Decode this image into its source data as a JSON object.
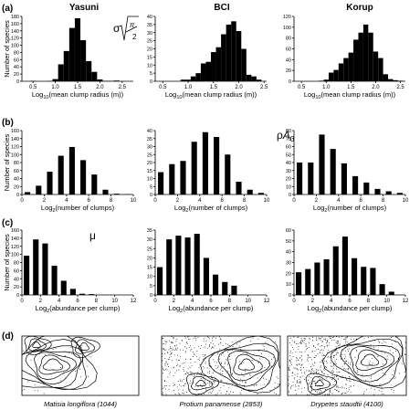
{
  "columns": [
    "Yasuni",
    "BCI",
    "Korup"
  ],
  "panel_labels": [
    "(a)",
    "(b)",
    "(c)",
    "(d)"
  ],
  "row_symbols": [
    "σ√(π/2)",
    "ρA₀",
    "μ"
  ],
  "chart_data": [
    {
      "row": "a",
      "site": "Yasuni",
      "type": "bar",
      "ylabel": "Number of species",
      "xlabel": "Log10(mean clump radius (m))",
      "xlim": [
        0.25,
        2.75
      ],
      "ylim": [
        0,
        180
      ],
      "bar_width": 0.125,
      "xticks": [
        0.5,
        1.0,
        1.5,
        2.0,
        2.5
      ],
      "xtick_labels": [
        "0.5",
        "1.0",
        "1.5",
        "2.0",
        "2.5"
      ],
      "yticks": [
        0,
        20,
        40,
        60,
        80,
        100,
        120,
        140,
        160,
        180
      ],
      "x": [
        0.375,
        0.5,
        0.625,
        0.75,
        0.875,
        1.0,
        1.125,
        1.25,
        1.375,
        1.5,
        1.625,
        1.75,
        1.875,
        2.0,
        2.125,
        2.25,
        2.375,
        2.5
      ],
      "values": [
        0,
        1,
        0,
        0,
        1,
        6,
        47,
        84,
        148,
        175,
        114,
        56,
        26,
        5,
        1,
        1,
        2,
        0
      ]
    },
    {
      "row": "a",
      "site": "BCI",
      "type": "bar",
      "ylabel": "",
      "xlabel": "Log10(mean clump radius (m))",
      "xlim": [
        0.35,
        2.55
      ],
      "ylim": [
        0,
        40
      ],
      "bar_width": 0.1,
      "xticks": [
        0.5,
        1.0,
        1.5,
        2.0,
        2.5
      ],
      "xtick_labels": [
        "0.5",
        "1.0",
        "1.5",
        "2.0",
        "2.5"
      ],
      "yticks": [
        0,
        5,
        10,
        15,
        20,
        25,
        30,
        35,
        40
      ],
      "x": [
        0.5,
        0.6,
        0.7,
        0.8,
        0.9,
        1.0,
        1.1,
        1.2,
        1.3,
        1.4,
        1.5,
        1.6,
        1.7,
        1.8,
        1.9,
        2.0,
        2.1,
        2.2,
        2.3,
        2.4
      ],
      "values": [
        0,
        0,
        0,
        0,
        1,
        1,
        3,
        5,
        11,
        12,
        18,
        21,
        29,
        35,
        37,
        31,
        20,
        4,
        3,
        1
      ]
    },
    {
      "row": "a",
      "site": "Korup",
      "type": "bar",
      "ylabel": "",
      "xlabel": "Log10(mean clump radius (m))",
      "xlim": [
        0.35,
        2.6
      ],
      "ylim": [
        0,
        120
      ],
      "bar_width": 0.1,
      "xticks": [
        0.5,
        1.0,
        1.5,
        2.0,
        2.5
      ],
      "xtick_labels": [
        "0.5",
        "1.0",
        "1.5",
        "2.0",
        "2.5"
      ],
      "yticks": [
        0,
        20,
        40,
        60,
        80,
        100,
        120
      ],
      "x": [
        0.9,
        1.0,
        1.1,
        1.2,
        1.3,
        1.4,
        1.5,
        1.6,
        1.7,
        1.8,
        1.9,
        2.0,
        2.1,
        2.2,
        2.3,
        2.4,
        2.5
      ],
      "values": [
        1,
        3,
        16,
        21,
        33,
        43,
        53,
        77,
        90,
        105,
        90,
        55,
        43,
        13,
        4,
        2,
        1
      ]
    },
    {
      "row": "b",
      "site": "Yasuni",
      "type": "bar",
      "ylabel": "Number of species",
      "xlabel": "Log2(number of clumps)",
      "xlim": [
        0,
        10
      ],
      "ylim": [
        0,
        160
      ],
      "bar_width": 0.5,
      "xticks": [
        0,
        2,
        4,
        6,
        8,
        10
      ],
      "xtick_labels": [
        "0",
        "2",
        "4",
        "6",
        "8",
        "10"
      ],
      "yticks": [
        0,
        20,
        40,
        60,
        80,
        100,
        120,
        140,
        160
      ],
      "x": [
        0.5,
        1.5,
        2.5,
        3.5,
        4.5,
        5.5,
        6.5,
        7.5,
        8.5,
        9.5
      ],
      "values": [
        6,
        22,
        57,
        97,
        119,
        86,
        50,
        12,
        2,
        1
      ]
    },
    {
      "row": "b",
      "site": "BCI",
      "type": "bar",
      "ylabel": "",
      "xlabel": "Log2(number of clumps)",
      "xlim": [
        0,
        10
      ],
      "ylim": [
        0,
        40
      ],
      "bar_width": 0.5,
      "xticks": [
        0,
        2,
        4,
        6,
        8,
        10
      ],
      "xtick_labels": [
        "0",
        "2",
        "4",
        "6",
        "8",
        "10"
      ],
      "yticks": [
        0,
        5,
        10,
        15,
        20,
        25,
        30,
        35,
        40
      ],
      "x": [
        0.5,
        1.5,
        2.5,
        3.5,
        4.5,
        5.5,
        6.5,
        7.5,
        8.5,
        9.5
      ],
      "values": [
        14,
        19,
        21,
        33,
        39,
        36,
        25,
        8,
        3,
        1
      ]
    },
    {
      "row": "b",
      "site": "Korup",
      "type": "bar",
      "ylabel": "",
      "xlabel": "Log2(number of clumps)",
      "xlim": [
        0,
        10
      ],
      "ylim": [
        0,
        80
      ],
      "bar_width": 0.5,
      "xticks": [
        0,
        2,
        4,
        6,
        8,
        10
      ],
      "xtick_labels": [
        "0",
        "2",
        "4",
        "6",
        "8",
        "10"
      ],
      "yticks": [
        0,
        10,
        20,
        30,
        40,
        50,
        60,
        70,
        80
      ],
      "x": [
        0.5,
        1.5,
        2.5,
        3.5,
        4.5,
        5.5,
        6.5,
        7.5,
        8.5,
        9.5
      ],
      "values": [
        40,
        40,
        75,
        57,
        39,
        23,
        15,
        7,
        4,
        2
      ]
    },
    {
      "row": "c",
      "site": "Yasuni",
      "type": "bar",
      "ylabel": "Number of species",
      "xlabel": "Log2(abundance per clump)",
      "xlim": [
        0,
        12
      ],
      "ylim": [
        0,
        160
      ],
      "bar_width": 0.6,
      "xticks": [
        0,
        2,
        4,
        6,
        8,
        10,
        12
      ],
      "xtick_labels": [
        "0",
        "2",
        "4",
        "6",
        "8",
        "10",
        "12"
      ],
      "yticks": [
        0,
        20,
        40,
        60,
        80,
        100,
        120,
        140,
        160
      ],
      "x": [
        0.5,
        1.5,
        2.5,
        3.5,
        4.5,
        5.5,
        6.5,
        7.5
      ],
      "values": [
        97,
        137,
        127,
        72,
        35,
        15,
        3,
        2
      ]
    },
    {
      "row": "c",
      "site": "BCI",
      "type": "bar",
      "ylabel": "",
      "xlabel": "Log2(abundance per clump)",
      "xlim": [
        0,
        12
      ],
      "ylim": [
        0,
        35
      ],
      "bar_width": 0.6,
      "xticks": [
        0,
        2,
        4,
        6,
        8,
        10,
        12
      ],
      "xtick_labels": [
        "0",
        "2",
        "4",
        "6",
        "8",
        "10",
        "12"
      ],
      "yticks": [
        0,
        5,
        10,
        15,
        20,
        25,
        30,
        35
      ],
      "x": [
        0.5,
        1.5,
        2.5,
        3.5,
        4.5,
        5.5,
        6.5,
        7.5,
        8.5
      ],
      "values": [
        15,
        30,
        32,
        31,
        33,
        20,
        11,
        7,
        5
      ]
    },
    {
      "row": "c",
      "site": "Korup",
      "type": "bar",
      "ylabel": "",
      "xlabel": "Log2(abundance per clump)",
      "xlim": [
        0,
        12
      ],
      "ylim": [
        0,
        60
      ],
      "bar_width": 0.6,
      "xticks": [
        0,
        2,
        4,
        6,
        8,
        10,
        12
      ],
      "xtick_labels": [
        "0",
        "2",
        "4",
        "6",
        "8",
        "10",
        "12"
      ],
      "yticks": [
        0,
        10,
        20,
        30,
        40,
        50,
        60
      ],
      "x": [
        0.5,
        1.5,
        2.5,
        3.5,
        4.5,
        5.5,
        6.5,
        7.5,
        8.5,
        9.5,
        10.5
      ],
      "values": [
        21,
        24,
        30,
        33,
        45,
        54,
        34,
        26,
        25,
        10,
        3
      ]
    }
  ],
  "maps": [
    {
      "species": "Matisia longiflora (1044)"
    },
    {
      "species": "Protium panamense (2853)"
    },
    {
      "species": "Drypetes staudtii (4100)"
    }
  ]
}
